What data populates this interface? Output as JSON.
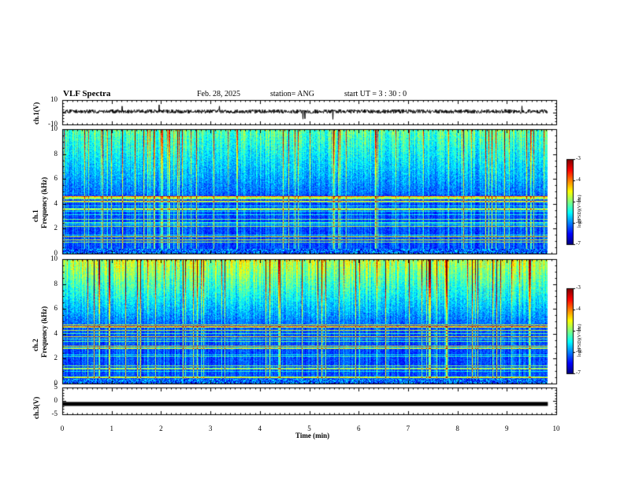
{
  "header": {
    "title": "VLF Spectra",
    "date": "Feb. 28, 2025",
    "station": "station= ANG",
    "start": "start  UT =   3 : 30 : 0"
  },
  "chart_data": [
    {
      "type": "line",
      "panel": "ch1-waveform",
      "ylabel": "ch.1(V)",
      "ylim": [
        -10,
        10
      ],
      "yticks": [
        "10",
        "-10"
      ],
      "x_range_min": [
        0,
        9.83
      ],
      "series": [
        {
          "values_description_level": 0
        }
      ]
    },
    {
      "type": "heatmap",
      "panel": "ch1-spectrogram",
      "ylabel": "ch.1\nFrequency (kHz)",
      "ylabel_line1": "ch.1",
      "ylabel_line2": "Frequency (kHz)",
      "ylim": [
        0,
        10
      ],
      "yticks": [
        "0",
        "2",
        "4",
        "6",
        "8",
        "10"
      ],
      "colorbar": {
        "label": "log(PSD)(V²/Hz)",
        "range": [
          -7,
          -3
        ],
        "ticks": [
          "-3",
          "-4",
          "-5",
          "-6",
          "-7"
        ]
      }
    },
    {
      "type": "heatmap",
      "panel": "ch2-spectrogram",
      "ylabel_line1": "ch.2",
      "ylabel_line2": "Frequency (kHz)",
      "ylim": [
        0,
        10
      ],
      "yticks": [
        "0",
        "2",
        "4",
        "6",
        "8",
        "10"
      ],
      "colorbar": {
        "label": "log(PSD)(V²/Hz)",
        "range": [
          -7,
          -3
        ],
        "ticks": [
          "-3",
          "-4",
          "-5",
          "-6",
          "-7"
        ]
      }
    },
    {
      "type": "line",
      "panel": "ch3-waveform",
      "ylabel": "ch.3(V)",
      "ylim": [
        -5,
        5
      ],
      "yticks": [
        "5",
        "0",
        "-5"
      ],
      "level": -1
    }
  ],
  "xaxis": {
    "label": "Time (min)",
    "range": [
      0,
      10
    ],
    "ticks": [
      "0",
      "1",
      "2",
      "3",
      "4",
      "5",
      "6",
      "7",
      "8",
      "9",
      "10"
    ]
  }
}
